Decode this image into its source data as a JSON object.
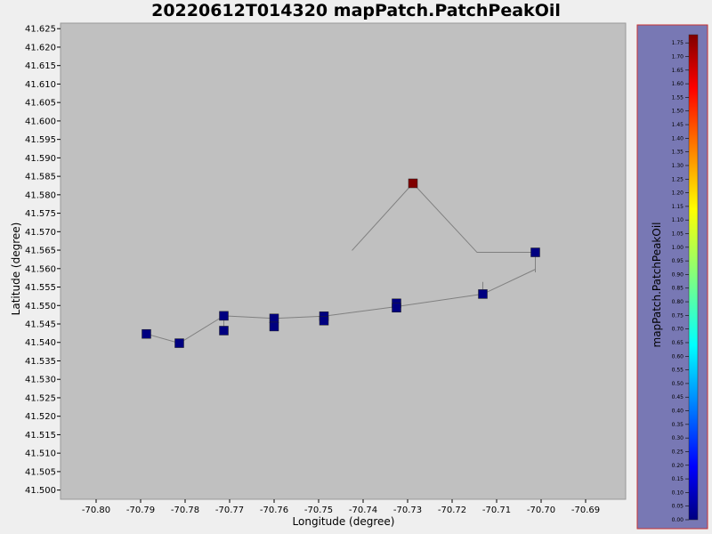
{
  "chart_data": {
    "type": "scatter",
    "title": "20220612T014320 mapPatch.PatchPeakOil",
    "xlabel": "Longitude (degree)",
    "ylabel": "Latitude (degree)",
    "xlim": [
      -70.808,
      -70.681
    ],
    "ylim": [
      41.4975,
      41.6265
    ],
    "xticks": [
      -70.8,
      -70.79,
      -70.78,
      -70.77,
      -70.76,
      -70.75,
      -70.74,
      -70.73,
      -70.72,
      -70.71,
      -70.7,
      -70.69
    ],
    "xtick_labels": [
      "-70.80",
      "-70.79",
      "-70.78",
      "-70.77",
      "-70.76",
      "-70.75",
      "-70.74",
      "-70.73",
      "-70.72",
      "-70.71",
      "-70.70",
      "-70.69"
    ],
    "yticks": [
      41.5,
      41.505,
      41.51,
      41.515,
      41.52,
      41.525,
      41.53,
      41.535,
      41.54,
      41.545,
      41.55,
      41.555,
      41.56,
      41.565,
      41.57,
      41.575,
      41.58,
      41.585,
      41.59,
      41.595,
      41.6,
      41.605,
      41.61,
      41.615,
      41.62,
      41.625
    ],
    "ytick_labels": [
      "41.500",
      "41.505",
      "41.510",
      "41.515",
      "41.520",
      "41.525",
      "41.530",
      "41.535",
      "41.540",
      "41.545",
      "41.550",
      "41.555",
      "41.560",
      "41.565",
      "41.570",
      "41.575",
      "41.580",
      "41.585",
      "41.590",
      "41.595",
      "41.600",
      "41.605",
      "41.610",
      "41.615",
      "41.620",
      "41.625"
    ],
    "grid": false,
    "plot_background": "#c0c0c0",
    "track_color": "#808080",
    "track": [
      {
        "x": -70.7887,
        "y": 41.5423
      },
      {
        "x": -70.7813,
        "y": 41.5398
      },
      {
        "x": -70.7713,
        "y": 41.5472
      },
      {
        "x": -70.76,
        "y": 41.5465
      },
      {
        "x": -70.7488,
        "y": 41.5471
      },
      {
        "x": -70.7325,
        "y": 41.5497
      },
      {
        "x": -70.7131,
        "y": 41.5531
      },
      {
        "x": -70.7013,
        "y": 41.5598
      }
    ],
    "track_upper": [
      {
        "x": -70.7425,
        "y": 41.5649
      },
      {
        "x": -70.7288,
        "y": 41.5831
      },
      {
        "x": -70.7144,
        "y": 41.5644
      },
      {
        "x": -70.7013,
        "y": 41.5644
      },
      {
        "x": -70.7013,
        "y": 41.559
      }
    ],
    "vertical_segments": [
      {
        "x": -70.7713,
        "y1": 41.5472,
        "y2": 41.5432
      },
      {
        "x": -70.76,
        "y1": 41.5465,
        "y2": 41.5443
      },
      {
        "x": -70.7488,
        "y1": 41.5471,
        "y2": 41.5459
      },
      {
        "x": -70.7325,
        "y1": 41.5506,
        "y2": 41.5494
      },
      {
        "x": -70.7131,
        "y1": 41.5564,
        "y2": 41.5531
      }
    ],
    "points": [
      {
        "x": -70.7887,
        "y": 41.5423,
        "value": 0.0
      },
      {
        "x": -70.7813,
        "y": 41.5398,
        "value": 0.0
      },
      {
        "x": -70.7713,
        "y": 41.5472,
        "value": 0.0
      },
      {
        "x": -70.7713,
        "y": 41.5432,
        "value": 0.0
      },
      {
        "x": -70.76,
        "y": 41.5465,
        "value": 0.0
      },
      {
        "x": -70.76,
        "y": 41.5443,
        "value": 0.0
      },
      {
        "x": -70.7488,
        "y": 41.5471,
        "value": 0.0
      },
      {
        "x": -70.7488,
        "y": 41.5459,
        "value": 0.0
      },
      {
        "x": -70.7325,
        "y": 41.5506,
        "value": 0.0
      },
      {
        "x": -70.7325,
        "y": 41.5494,
        "value": 0.0
      },
      {
        "x": -70.7131,
        "y": 41.5531,
        "value": 0.0
      },
      {
        "x": -70.7013,
        "y": 41.5644,
        "value": 0.0
      },
      {
        "x": -70.7288,
        "y": 41.5831,
        "value": 1.78
      }
    ],
    "colorbar": {
      "label": "mapPatch.PatchPeakOil",
      "min": 0.0,
      "max": 1.78,
      "ticks": [
        0.0,
        0.05,
        0.1,
        0.15,
        0.2,
        0.25,
        0.3,
        0.35,
        0.4,
        0.45,
        0.5,
        0.55,
        0.6,
        0.65,
        0.7,
        0.75,
        0.8,
        0.85,
        0.9,
        0.95,
        1.0,
        1.05,
        1.1,
        1.15,
        1.2,
        1.25,
        1.3,
        1.35,
        1.4,
        1.45,
        1.5,
        1.55,
        1.6,
        1.65,
        1.7,
        1.75
      ],
      "tick_labels": [
        "0.00",
        "0.05",
        "0.10",
        "0.15",
        "0.20",
        "0.25",
        "0.30",
        "0.35",
        "0.40",
        "0.45",
        "0.50",
        "0.55",
        "0.60",
        "0.65",
        "0.70",
        "0.75",
        "0.80",
        "0.85",
        "0.90",
        "0.95",
        "1.00",
        "1.05",
        "1.10",
        "1.15",
        "1.20",
        "1.25",
        "1.30",
        "1.35",
        "1.40",
        "1.45",
        "1.50",
        "1.55",
        "1.60",
        "1.65",
        "1.70",
        "1.75"
      ],
      "colormap": "jet",
      "panel_background": "#7878b4",
      "panel_border": "#c83232"
    }
  }
}
